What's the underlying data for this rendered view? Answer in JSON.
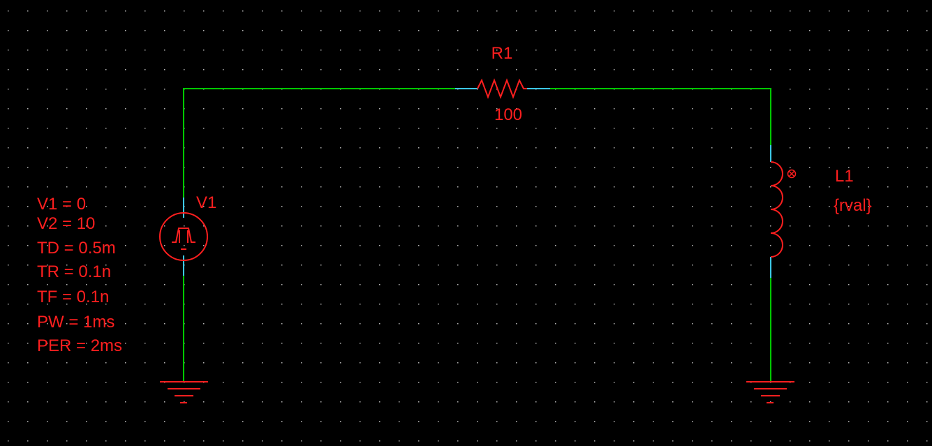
{
  "colors": {
    "background": "#000000",
    "grid_dot": "#b4b4b4",
    "wire": "#00c800",
    "pin": "#3cc8e6",
    "component": "#ff1f1f",
    "text": "#ff1f1f"
  },
  "components": {
    "r1": {
      "ref": "R1",
      "value": "100"
    },
    "v1": {
      "ref": "V1",
      "params": [
        "V1 = 0",
        "V2 = 10",
        "TD = 0.5m",
        "TR = 0.1n",
        "TF = 0.1n",
        "PW = 1ms",
        "PER = 2ms"
      ]
    },
    "l1": {
      "ref": "L1",
      "value": "{rval}"
    }
  },
  "icons": {
    "source": "pulse-source-icon",
    "resistor": "resistor-icon",
    "inductor": "inductor-icon",
    "ground": "ground-icon"
  }
}
